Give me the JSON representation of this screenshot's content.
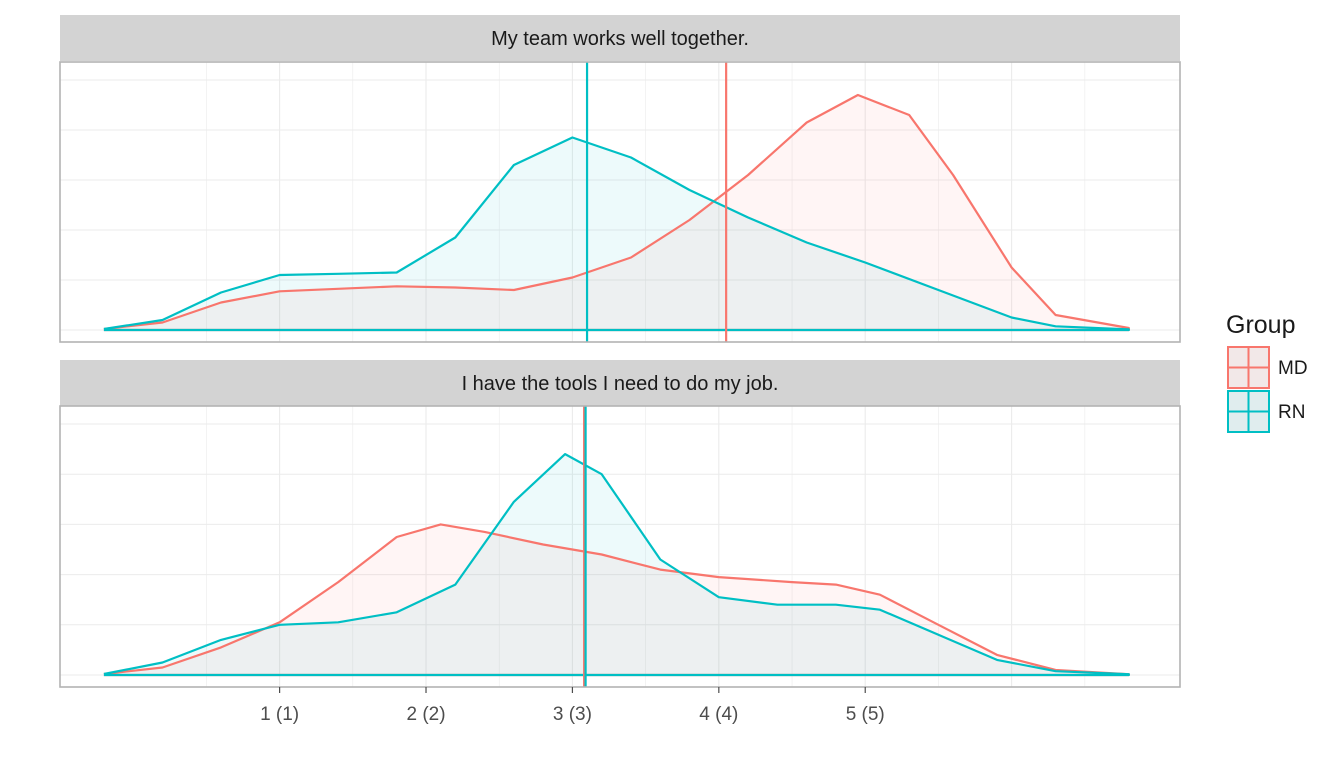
{
  "chart_data": {
    "type": "area",
    "subtype": "density",
    "grid": true,
    "legend_position": "right",
    "legend": {
      "title": "Group",
      "entries": [
        {
          "label": "MD",
          "color": "#F8766D"
        },
        {
          "label": "RN",
          "color": "#00BFC4"
        }
      ]
    },
    "xlim": [
      -0.5,
      7.15
    ],
    "x_ticks": [
      {
        "value": 1,
        "label": "1 (1)"
      },
      {
        "value": 2,
        "label": "2 (2)"
      },
      {
        "value": 3,
        "label": "3 (3)"
      },
      {
        "value": 4,
        "label": "4 (4)"
      },
      {
        "value": 5,
        "label": "5 (5)"
      }
    ],
    "xlabel": "",
    "ylabel": "",
    "panels": [
      {
        "title": "My team works well together.",
        "ylim": [
          0,
          1
        ],
        "series": [
          {
            "name": "MD",
            "mean": 4.05,
            "x": [
              -0.2,
              0.2,
              0.6,
              1.0,
              1.4,
              1.8,
              2.2,
              2.6,
              3.0,
              3.4,
              3.8,
              4.2,
              4.6,
              4.95,
              5.3,
              5.6,
              6.0,
              6.3,
              6.8
            ],
            "y": [
              0.004,
              0.03,
              0.11,
              0.155,
              0.165,
              0.175,
              0.17,
              0.16,
              0.21,
              0.29,
              0.44,
              0.62,
              0.83,
              0.94,
              0.86,
              0.62,
              0.25,
              0.06,
              0.008
            ]
          },
          {
            "name": "RN",
            "mean": 3.1,
            "x": [
              -0.2,
              0.2,
              0.6,
              1.0,
              1.4,
              1.8,
              2.2,
              2.6,
              3.0,
              3.4,
              3.8,
              4.2,
              4.6,
              5.0,
              5.5,
              6.0,
              6.3,
              6.8
            ],
            "y": [
              0.004,
              0.04,
              0.15,
              0.22,
              0.225,
              0.23,
              0.37,
              0.66,
              0.77,
              0.69,
              0.56,
              0.45,
              0.35,
              0.27,
              0.16,
              0.05,
              0.015,
              0.003
            ]
          }
        ]
      },
      {
        "title": "I have the tools I need to do my job.",
        "ylim": [
          0,
          1
        ],
        "series": [
          {
            "name": "MD",
            "mean": 3.08,
            "x": [
              -0.2,
              0.2,
              0.6,
              1.0,
              1.4,
              1.8,
              2.1,
              2.4,
              2.8,
              3.2,
              3.6,
              4.0,
              4.5,
              4.8,
              5.1,
              5.5,
              5.9,
              6.3,
              6.8
            ],
            "y": [
              0.004,
              0.03,
              0.11,
              0.21,
              0.37,
              0.55,
              0.6,
              0.57,
              0.52,
              0.48,
              0.42,
              0.39,
              0.37,
              0.36,
              0.32,
              0.2,
              0.08,
              0.02,
              0.003
            ]
          },
          {
            "name": "RN",
            "mean": 3.09,
            "x": [
              -0.2,
              0.2,
              0.6,
              1.0,
              1.4,
              1.8,
              2.2,
              2.6,
              2.95,
              3.2,
              3.6,
              4.0,
              4.4,
              4.8,
              5.1,
              5.5,
              5.9,
              6.3,
              6.8
            ],
            "y": [
              0.004,
              0.05,
              0.14,
              0.2,
              0.21,
              0.25,
              0.36,
              0.69,
              0.88,
              0.8,
              0.46,
              0.31,
              0.28,
              0.28,
              0.26,
              0.16,
              0.06,
              0.015,
              0.003
            ]
          }
        ]
      }
    ]
  }
}
